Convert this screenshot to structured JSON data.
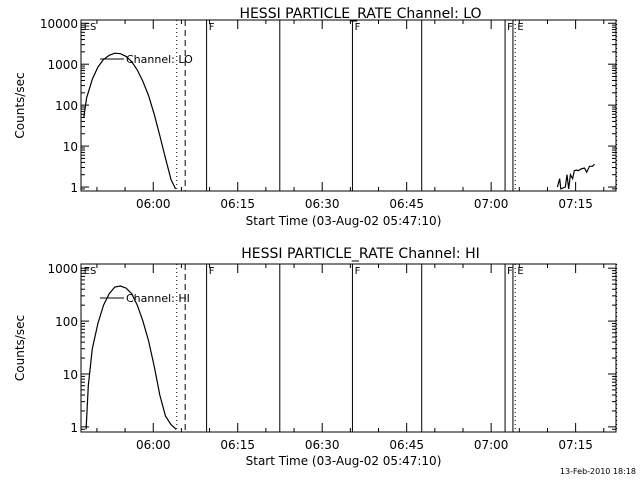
{
  "footer": {
    "timestamp": "13-Feb-2010 18:18"
  },
  "chart_data": [
    {
      "type": "line",
      "title": "HESSI PARTICLE_RATE Channel: LO",
      "xlabel": "Start Time (03-Aug-02 05:47:10)",
      "ylabel": "Counts/sec",
      "y_scale": "log",
      "xlim_minutes": [
        0,
        95
      ],
      "ylim": [
        0.8,
        12000
      ],
      "x_tick_minutes": [
        12.83,
        27.83,
        42.83,
        57.83,
        72.83,
        87.83
      ],
      "x_tick_labels": [
        "06:00",
        "06:15",
        "06:30",
        "06:45",
        "07:00",
        "07:15"
      ],
      "y_tick_values": [
        1,
        10,
        100,
        1000,
        10000
      ],
      "y_tick_labels": [
        "1",
        "10",
        "100",
        "1000",
        "10000"
      ],
      "legend_label": "Channel: LO",
      "markers": {
        "solid_lines_minutes": [
          22.3,
          35.3,
          48.2,
          60.5,
          75.3,
          76.7
        ],
        "dashed_lines_minutes": [
          18.5
        ],
        "dotted_lines_minutes": [
          17.0,
          77.1,
          95.1
        ],
        "letters": [
          {
            "text": "ES",
            "minute": 0.3
          },
          {
            "text": "F",
            "minute": 22.5
          },
          {
            "text": "F",
            "minute": 48.4
          },
          {
            "text": "F",
            "minute": 75.5
          },
          {
            "text": "E",
            "minute": 77.3
          }
        ]
      },
      "series": [
        {
          "x": [
            0.5,
            1,
            2,
            3,
            4,
            5,
            6,
            7,
            8,
            9,
            10,
            11,
            12,
            13,
            14,
            15,
            16,
            16.8
          ],
          "y": [
            50,
            150,
            430,
            850,
            1300,
            1650,
            1850,
            1800,
            1550,
            1150,
            720,
            380,
            170,
            60,
            18,
            5,
            1.5,
            0.9
          ]
        },
        {
          "x": [
            84.6,
            85,
            85.2,
            86,
            86.3,
            86.6,
            86.9,
            87.3,
            87.6,
            88,
            88.3,
            88.9,
            89.4,
            89.8,
            90.3,
            90.8,
            91.2
          ],
          "y": [
            1,
            1.6,
            0.9,
            1,
            2,
            0.9,
            2,
            1.6,
            2.5,
            2.6,
            2.5,
            2.8,
            2.9,
            2.3,
            3.2,
            3.2,
            3.6
          ]
        }
      ]
    },
    {
      "type": "line",
      "title": "HESSI PARTICLE_RATE Channel: HI",
      "xlabel": "Start Time (03-Aug-02 05:47:10)",
      "ylabel": "Counts/sec",
      "y_scale": "log",
      "xlim_minutes": [
        0,
        95
      ],
      "ylim": [
        0.8,
        1200
      ],
      "x_tick_minutes": [
        12.83,
        27.83,
        42.83,
        57.83,
        72.83,
        87.83
      ],
      "x_tick_labels": [
        "06:00",
        "06:15",
        "06:30",
        "06:45",
        "07:00",
        "07:15"
      ],
      "y_tick_values": [
        1,
        10,
        100,
        1000
      ],
      "y_tick_labels": [
        "1",
        "10",
        "100",
        "1000"
      ],
      "legend_label": "Channel: HI",
      "markers": {
        "solid_lines_minutes": [
          22.3,
          35.3,
          48.2,
          60.5,
          75.3,
          76.7
        ],
        "dashed_lines_minutes": [
          18.5
        ],
        "dotted_lines_minutes": [
          17.0,
          77.1,
          95.1
        ],
        "letters": [
          {
            "text": "ES",
            "minute": 0.3
          },
          {
            "text": "F",
            "minute": 22.5
          },
          {
            "text": "F",
            "minute": 48.4
          },
          {
            "text": "F",
            "minute": 75.5
          },
          {
            "text": "E",
            "minute": 77.3
          }
        ]
      },
      "series": [
        {
          "x": [
            0.9,
            1.3,
            2,
            3,
            4,
            5,
            6,
            7,
            8,
            9,
            10,
            11,
            12,
            13,
            14,
            15,
            16,
            16.9
          ],
          "y": [
            0.9,
            6,
            30,
            90,
            200,
            330,
            440,
            460,
            420,
            330,
            200,
            100,
            42,
            14,
            4,
            1.6,
            1.1,
            0.9
          ]
        }
      ]
    }
  ]
}
